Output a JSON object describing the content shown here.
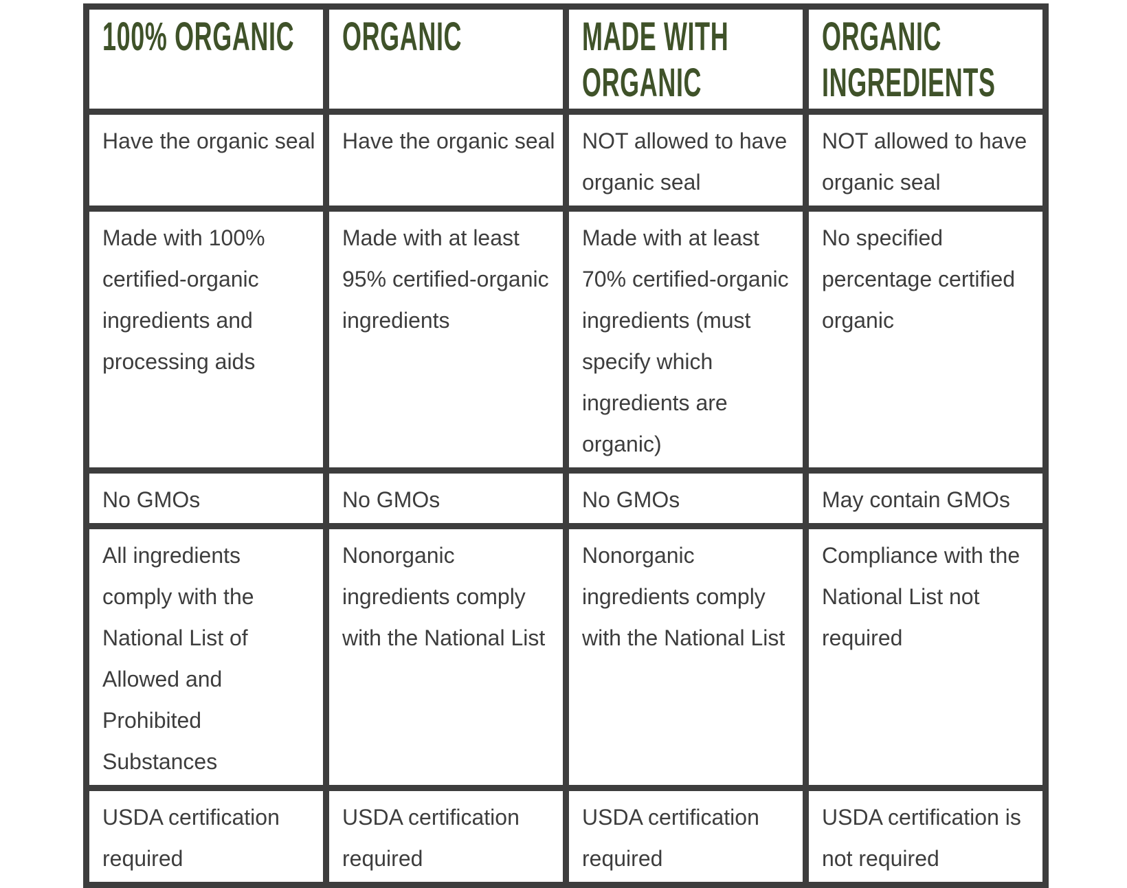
{
  "headers": [
    "100% ORGANIC",
    "ORGANIC",
    "MADE WITH ORGANIC",
    "ORGANIC INGREDIENTS"
  ],
  "rows": [
    [
      "Have the organic seal",
      "Have the organic seal",
      "NOT allowed to have organic seal",
      "NOT allowed to have organic seal"
    ],
    [
      "Made with 100% certified-organic ingredients and processing aids",
      "Made with at least 95% certified-organic ingredients",
      "Made with at least 70% certified-organic ingredients (must specify which ingredients are organic)",
      "No specified percentage certified organic"
    ],
    [
      "No GMOs",
      "No GMOs",
      "No GMOs",
      "May contain GMOs"
    ],
    [
      "All ingredients comply with the National List of Allowed and Prohibited Substances",
      "Nonorganic ingredients comply with the National List",
      "Nonorganic ingredients comply with the National List",
      "Compliance with the National List not required"
    ],
    [
      "USDA certification required",
      "USDA certification required",
      "USDA certification required",
      "USDA certification is not required"
    ]
  ],
  "colors": {
    "header_text": "#3f5229",
    "border": "#3d3d3d",
    "body_text": "#3d3d3d"
  }
}
